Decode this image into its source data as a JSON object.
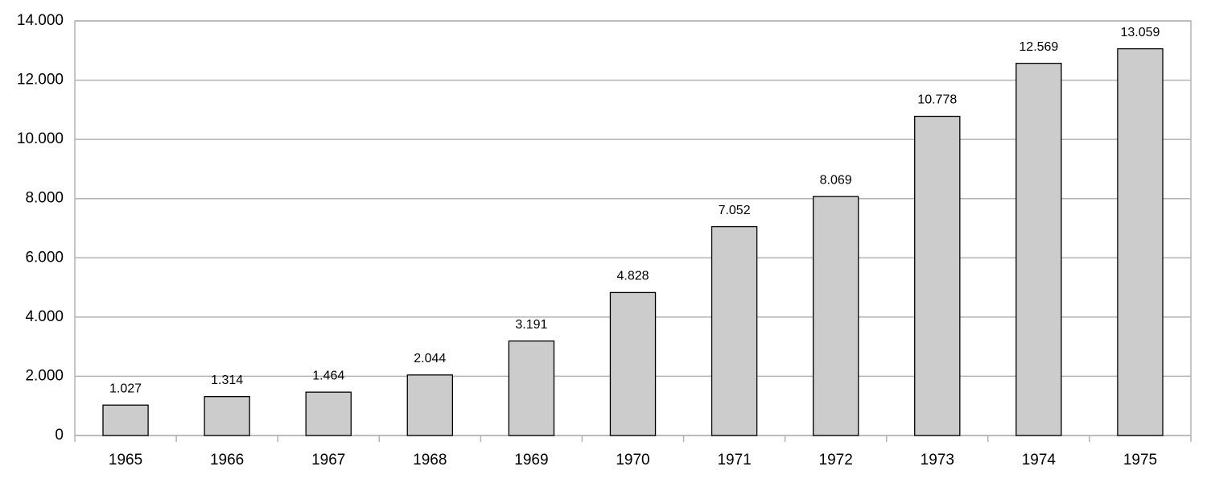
{
  "chart_data": {
    "type": "bar",
    "categories": [
      "1965",
      "1966",
      "1967",
      "1968",
      "1969",
      "1970",
      "1971",
      "1972",
      "1973",
      "1974",
      "1975"
    ],
    "values": [
      1027,
      1314,
      1464,
      2044,
      3191,
      4828,
      7052,
      8069,
      10778,
      12569,
      13059
    ],
    "value_labels": [
      "1.027",
      "1.314",
      "1.464",
      "2.044",
      "3.191",
      "4.828",
      "7.052",
      "8.069",
      "10.778",
      "12.569",
      "13.059"
    ],
    "color": "#cccccc",
    "ylim": [
      0,
      14000
    ],
    "yticks": [
      0,
      {
        "value": 2000,
        "label": "2.000"
      },
      {
        "value": 4000,
        "label": "4.000"
      },
      {
        "value": 6000,
        "label": "6.000"
      },
      {
        "value": 8000,
        "label": "8.000"
      },
      {
        "value": 10000,
        "label": "10.000"
      },
      {
        "value": 12000,
        "label": "12.000"
      },
      {
        "value": 14000,
        "label": "14.000"
      }
    ],
    "grid": true
  }
}
